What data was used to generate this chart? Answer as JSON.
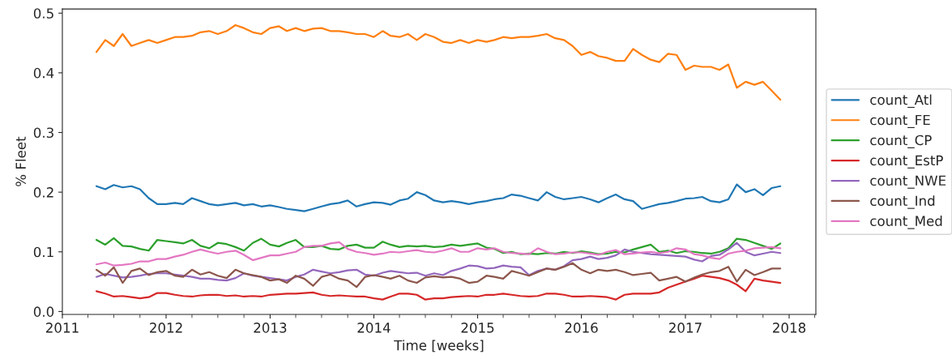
{
  "chart_data": {
    "type": "line",
    "xlabel": "Time [weeks]",
    "ylabel": "% Fleet",
    "legend": "right",
    "grid": false,
    "marker": "none",
    "line_style": "solid",
    "x": [
      "2011-05",
      "2011-06",
      "2011-07",
      "2011-08",
      "2011-09",
      "2011-10",
      "2011-11",
      "2011-12",
      "2012-01",
      "2012-02",
      "2012-03",
      "2012-04",
      "2012-05",
      "2012-06",
      "2012-07",
      "2012-08",
      "2012-09",
      "2012-10",
      "2012-11",
      "2012-12",
      "2013-01",
      "2013-02",
      "2013-03",
      "2013-04",
      "2013-05",
      "2013-06",
      "2013-07",
      "2013-08",
      "2013-09",
      "2013-10",
      "2013-11",
      "2013-12",
      "2014-01",
      "2014-02",
      "2014-03",
      "2014-04",
      "2014-05",
      "2014-06",
      "2014-07",
      "2014-08",
      "2014-09",
      "2014-10",
      "2014-11",
      "2014-12",
      "2015-01",
      "2015-02",
      "2015-03",
      "2015-04",
      "2015-05",
      "2015-06",
      "2015-07",
      "2015-08",
      "2015-09",
      "2015-10",
      "2015-11",
      "2015-12",
      "2016-01",
      "2016-02",
      "2016-03",
      "2016-04",
      "2016-05",
      "2016-06",
      "2016-07",
      "2016-08",
      "2016-09",
      "2016-10",
      "2016-11",
      "2016-12",
      "2017-01",
      "2017-02",
      "2017-03",
      "2017-04",
      "2017-05",
      "2017-06",
      "2017-07",
      "2017-08",
      "2017-09",
      "2017-10",
      "2017-11",
      "2017-12"
    ],
    "xlim": [
      "2011-01-01",
      "2018-04-05"
    ],
    "xticks": [
      {
        "value": "2011-01-01",
        "label": "2011"
      },
      {
        "value": "2011-04-01",
        "label": null
      },
      {
        "value": "2011-07-01",
        "label": null
      },
      {
        "value": "2011-10-01",
        "label": null
      },
      {
        "value": "2012-01-01",
        "label": "2012"
      },
      {
        "value": "2012-04-01",
        "label": null
      },
      {
        "value": "2012-07-01",
        "label": null
      },
      {
        "value": "2012-10-01",
        "label": null
      },
      {
        "value": "2013-01-01",
        "label": "2013"
      },
      {
        "value": "2013-04-01",
        "label": null
      },
      {
        "value": "2013-07-01",
        "label": null
      },
      {
        "value": "2013-10-01",
        "label": null
      },
      {
        "value": "2014-01-01",
        "label": "2014"
      },
      {
        "value": "2014-04-01",
        "label": null
      },
      {
        "value": "2014-07-01",
        "label": null
      },
      {
        "value": "2014-10-01",
        "label": null
      },
      {
        "value": "2015-01-01",
        "label": "2015"
      },
      {
        "value": "2015-04-01",
        "label": null
      },
      {
        "value": "2015-07-01",
        "label": null
      },
      {
        "value": "2015-10-01",
        "label": null
      },
      {
        "value": "2016-01-01",
        "label": "2016"
      },
      {
        "value": "2016-04-01",
        "label": null
      },
      {
        "value": "2016-07-01",
        "label": null
      },
      {
        "value": "2016-10-01",
        "label": null
      },
      {
        "value": "2017-01-01",
        "label": "2017"
      },
      {
        "value": "2017-04-01",
        "label": null
      },
      {
        "value": "2017-07-01",
        "label": null
      },
      {
        "value": "2017-10-01",
        "label": null
      },
      {
        "value": "2018-01-01",
        "label": "2018"
      },
      {
        "value": "2018-04-01",
        "label": null
      }
    ],
    "ylim": [
      -0.005,
      0.507
    ],
    "yticks": [
      {
        "value": 0,
        "label": "0.0"
      },
      {
        "value": 0.1,
        "label": "0.1"
      },
      {
        "value": 0.2,
        "label": "0.2"
      },
      {
        "value": 0.3,
        "label": "0.3"
      },
      {
        "value": 0.4,
        "label": "0.4"
      },
      {
        "value": 0.5,
        "label": "0.5"
      }
    ],
    "series": [
      {
        "name": "count_Atl",
        "color": "#1f77b4",
        "values": [
          0.21,
          0.205,
          0.212,
          0.208,
          0.21,
          0.205,
          0.19,
          0.18,
          0.18,
          0.182,
          0.18,
          0.19,
          0.185,
          0.18,
          0.178,
          0.18,
          0.182,
          0.178,
          0.18,
          0.176,
          0.178,
          0.175,
          0.172,
          0.17,
          0.168,
          0.172,
          0.176,
          0.18,
          0.182,
          0.186,
          0.176,
          0.18,
          0.183,
          0.182,
          0.179,
          0.186,
          0.189,
          0.2,
          0.195,
          0.186,
          0.183,
          0.185,
          0.183,
          0.18,
          0.183,
          0.185,
          0.188,
          0.19,
          0.196,
          0.194,
          0.19,
          0.186,
          0.2,
          0.192,
          0.188,
          0.19,
          0.192,
          0.188,
          0.183,
          0.19,
          0.196,
          0.188,
          0.185,
          0.172,
          0.176,
          0.18,
          0.182,
          0.185,
          0.189,
          0.19,
          0.192,
          0.185,
          0.183,
          0.188,
          0.213,
          0.2,
          0.205,
          0.195,
          0.207,
          0.21
        ]
      },
      {
        "name": "count_FE",
        "color": "#ff7f0e",
        "values": [
          0.435,
          0.455,
          0.445,
          0.465,
          0.445,
          0.45,
          0.455,
          0.45,
          0.455,
          0.46,
          0.46,
          0.462,
          0.468,
          0.47,
          0.465,
          0.47,
          0.48,
          0.475,
          0.468,
          0.465,
          0.475,
          0.478,
          0.47,
          0.475,
          0.47,
          0.474,
          0.475,
          0.47,
          0.47,
          0.468,
          0.465,
          0.465,
          0.46,
          0.47,
          0.462,
          0.46,
          0.465,
          0.455,
          0.465,
          0.46,
          0.452,
          0.45,
          0.455,
          0.45,
          0.455,
          0.452,
          0.455,
          0.46,
          0.458,
          0.46,
          0.46,
          0.462,
          0.465,
          0.458,
          0.455,
          0.445,
          0.43,
          0.435,
          0.428,
          0.425,
          0.42,
          0.42,
          0.44,
          0.43,
          0.422,
          0.418,
          0.432,
          0.43,
          0.405,
          0.412,
          0.41,
          0.41,
          0.405,
          0.414,
          0.375,
          0.385,
          0.38,
          0.385,
          0.37,
          0.355
        ]
      },
      {
        "name": "count_CP",
        "color": "#2ca02c",
        "values": [
          0.12,
          0.112,
          0.123,
          0.11,
          0.109,
          0.105,
          0.102,
          0.12,
          0.118,
          0.116,
          0.114,
          0.12,
          0.11,
          0.106,
          0.115,
          0.113,
          0.108,
          0.102,
          0.115,
          0.122,
          0.112,
          0.109,
          0.115,
          0.12,
          0.108,
          0.108,
          0.11,
          0.105,
          0.104,
          0.11,
          0.112,
          0.107,
          0.107,
          0.117,
          0.112,
          0.108,
          0.11,
          0.109,
          0.11,
          0.108,
          0.109,
          0.112,
          0.11,
          0.112,
          0.114,
          0.107,
          0.105,
          0.098,
          0.1,
          0.096,
          0.097,
          0.096,
          0.098,
          0.097,
          0.1,
          0.098,
          0.101,
          0.099,
          0.096,
          0.097,
          0.1,
          0.099,
          0.104,
          0.108,
          0.112,
          0.1,
          0.102,
          0.098,
          0.101,
          0.1,
          0.098,
          0.097,
          0.1,
          0.106,
          0.122,
          0.12,
          0.115,
          0.11,
          0.105,
          0.114
        ]
      },
      {
        "name": "count_EstP",
        "color": "#d62728",
        "values": [
          0.034,
          0.03,
          0.025,
          0.026,
          0.024,
          0.022,
          0.024,
          0.031,
          0.031,
          0.028,
          0.026,
          0.025,
          0.027,
          0.028,
          0.028,
          0.026,
          0.027,
          0.025,
          0.026,
          0.025,
          0.028,
          0.029,
          0.03,
          0.03,
          0.031,
          0.032,
          0.028,
          0.026,
          0.027,
          0.026,
          0.025,
          0.025,
          0.022,
          0.02,
          0.025,
          0.03,
          0.03,
          0.028,
          0.02,
          0.022,
          0.022,
          0.024,
          0.025,
          0.026,
          0.025,
          0.028,
          0.028,
          0.03,
          0.028,
          0.026,
          0.025,
          0.026,
          0.03,
          0.03,
          0.028,
          0.025,
          0.025,
          0.026,
          0.025,
          0.024,
          0.02,
          0.028,
          0.03,
          0.03,
          0.03,
          0.032,
          0.04,
          0.045,
          0.05,
          0.055,
          0.06,
          0.058,
          0.056,
          0.052,
          0.045,
          0.034,
          0.055,
          0.052,
          0.05,
          0.048
        ]
      },
      {
        "name": "count_NWE",
        "color": "#9467bd",
        "values": [
          0.058,
          0.063,
          0.06,
          0.057,
          0.058,
          0.06,
          0.063,
          0.064,
          0.064,
          0.062,
          0.06,
          0.058,
          0.055,
          0.055,
          0.053,
          0.052,
          0.056,
          0.064,
          0.06,
          0.058,
          0.056,
          0.054,
          0.052,
          0.058,
          0.062,
          0.07,
          0.067,
          0.064,
          0.066,
          0.069,
          0.07,
          0.062,
          0.06,
          0.065,
          0.068,
          0.066,
          0.064,
          0.065,
          0.06,
          0.064,
          0.061,
          0.068,
          0.072,
          0.077,
          0.076,
          0.072,
          0.073,
          0.077,
          0.075,
          0.074,
          0.061,
          0.068,
          0.072,
          0.07,
          0.076,
          0.086,
          0.088,
          0.092,
          0.088,
          0.09,
          0.094,
          0.104,
          0.1,
          0.098,
          0.096,
          0.095,
          0.094,
          0.093,
          0.092,
          0.087,
          0.084,
          0.093,
          0.095,
          0.104,
          0.115,
          0.1,
          0.094,
          0.097,
          0.1,
          0.098
        ]
      },
      {
        "name": "count_Ind",
        "color": "#8c564b",
        "values": [
          0.07,
          0.06,
          0.074,
          0.048,
          0.068,
          0.072,
          0.061,
          0.066,
          0.068,
          0.06,
          0.058,
          0.07,
          0.062,
          0.066,
          0.06,
          0.056,
          0.07,
          0.064,
          0.061,
          0.058,
          0.052,
          0.054,
          0.048,
          0.06,
          0.055,
          0.043,
          0.058,
          0.062,
          0.055,
          0.052,
          0.041,
          0.058,
          0.061,
          0.058,
          0.055,
          0.06,
          0.052,
          0.048,
          0.057,
          0.059,
          0.057,
          0.058,
          0.055,
          0.048,
          0.05,
          0.06,
          0.058,
          0.055,
          0.068,
          0.064,
          0.06,
          0.066,
          0.072,
          0.07,
          0.075,
          0.081,
          0.07,
          0.064,
          0.07,
          0.068,
          0.07,
          0.066,
          0.061,
          0.063,
          0.065,
          0.052,
          0.055,
          0.058,
          0.05,
          0.057,
          0.062,
          0.066,
          0.068,
          0.075,
          0.05,
          0.07,
          0.061,
          0.066,
          0.072,
          0.072
        ]
      },
      {
        "name": "count_Med",
        "color": "#e377c2",
        "values": [
          0.079,
          0.082,
          0.077,
          0.078,
          0.08,
          0.084,
          0.084,
          0.088,
          0.088,
          0.092,
          0.095,
          0.1,
          0.104,
          0.1,
          0.097,
          0.1,
          0.102,
          0.095,
          0.086,
          0.09,
          0.094,
          0.094,
          0.097,
          0.1,
          0.108,
          0.11,
          0.11,
          0.114,
          0.116,
          0.105,
          0.1,
          0.098,
          0.095,
          0.097,
          0.1,
          0.099,
          0.101,
          0.103,
          0.1,
          0.099,
          0.102,
          0.106,
          0.1,
          0.1,
          0.106,
          0.104,
          0.106,
          0.1,
          0.098,
          0.097,
          0.096,
          0.106,
          0.1,
          0.096,
          0.097,
          0.099,
          0.099,
          0.097,
          0.095,
          0.1,
          0.103,
          0.096,
          0.097,
          0.099,
          0.1,
          0.098,
          0.1,
          0.106,
          0.104,
          0.096,
          0.094,
          0.09,
          0.088,
          0.097,
          0.1,
          0.102,
          0.106,
          0.107,
          0.108,
          0.106
        ]
      }
    ]
  }
}
